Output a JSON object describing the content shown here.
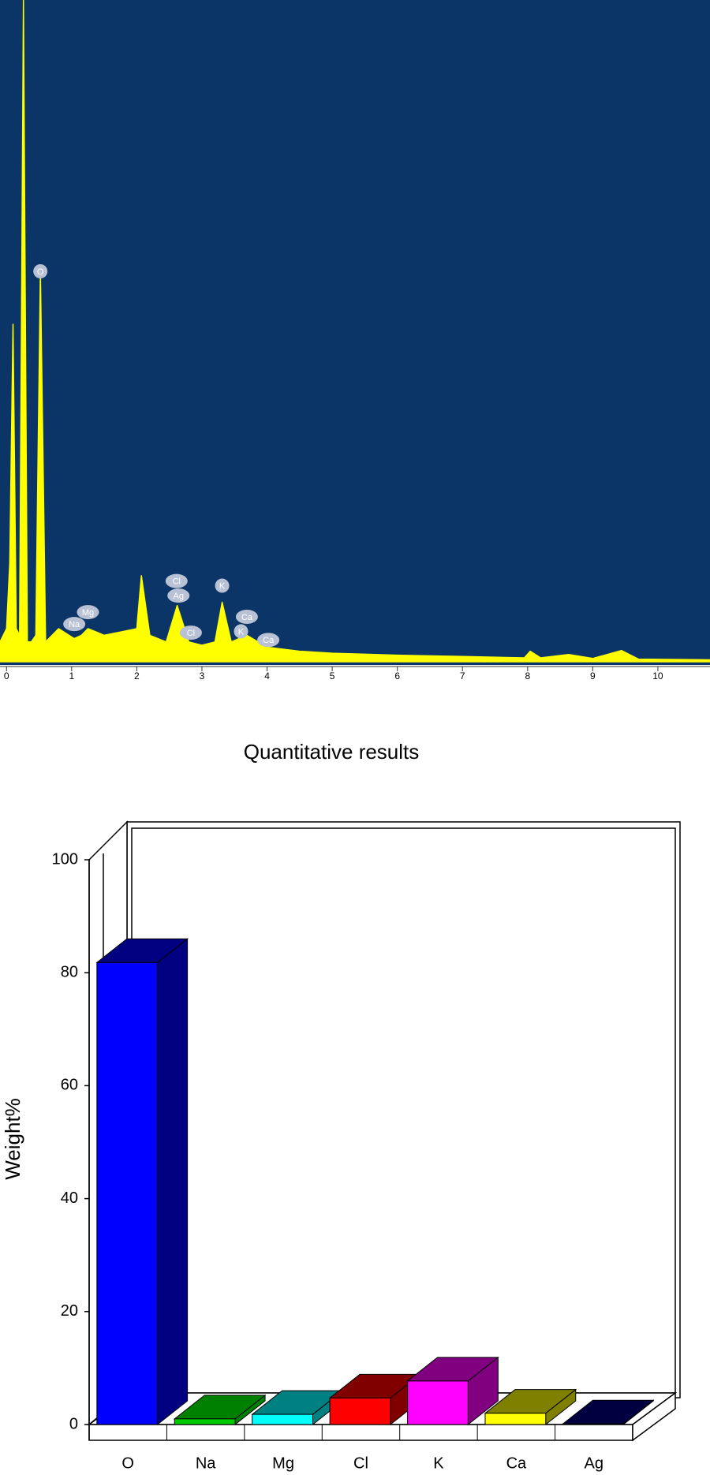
{
  "chart_data": [
    {
      "type": "area",
      "x": [
        -0.1,
        0,
        0.05,
        0.1,
        0.15,
        0.2,
        0.26,
        0.32,
        0.38,
        0.45,
        0.52,
        0.6,
        0.8,
        1.04,
        1.15,
        1.25,
        1.5,
        1.75,
        2.0,
        2.07,
        2.2,
        2.45,
        2.62,
        2.8,
        3.0,
        3.2,
        3.31,
        3.45,
        3.69,
        4.0,
        4.5,
        5,
        6,
        7,
        7.95,
        8.04,
        8.2,
        8.63,
        9.0,
        9.44,
        9.7,
        10.8
      ],
      "values": [
        3,
        5,
        15,
        51,
        5,
        4,
        100,
        3,
        3,
        4,
        59,
        3,
        5,
        3.5,
        4,
        5,
        4,
        4.5,
        5,
        13,
        4,
        3,
        8.5,
        3,
        2.5,
        3,
        9,
        3,
        4,
        2.2,
        1.6,
        1.3,
        1.0,
        0.8,
        0.6,
        1.6,
        0.6,
        1.1,
        0.5,
        1.7,
        0.4,
        0.3
      ],
      "color": "#ffff00",
      "background": "#0b3566",
      "xlim": [
        -0.1,
        10.8
      ],
      "ylim": [
        0,
        100
      ],
      "xticks": [
        0,
        1,
        2,
        3,
        4,
        5,
        6,
        7,
        8,
        9,
        10
      ],
      "annotations": [
        {
          "text": "O",
          "x": 0.52,
          "y": 59
        },
        {
          "text": "Na",
          "x": 1.04,
          "y": 5.7
        },
        {
          "text": "Mg",
          "x": 1.25,
          "y": 7.5
        },
        {
          "text": "Cl",
          "x": 2.61,
          "y": 12.2
        },
        {
          "text": "Ag",
          "x": 2.64,
          "y": 10
        },
        {
          "text": "Cl",
          "x": 2.83,
          "y": 4.4
        },
        {
          "text": "K",
          "x": 3.31,
          "y": 11.5
        },
        {
          "text": "K",
          "x": 3.6,
          "y": 4.6
        },
        {
          "text": "Ca",
          "x": 3.69,
          "y": 6.8
        },
        {
          "text": "Ca",
          "x": 4.02,
          "y": 3.3
        }
      ]
    },
    {
      "type": "bar",
      "title": "Quantitative results",
      "y_label": "Weight%",
      "categories": [
        "O",
        "Na",
        "Mg",
        "Cl",
        "K",
        "Ca",
        "Ag"
      ],
      "values": [
        81.8,
        1,
        1.8,
        4.7,
        7.7,
        2,
        0.1
      ],
      "colors": [
        "#0000ff",
        "#00cc00",
        "#00ffff",
        "#ff0000",
        "#ff00ff",
        "#ffff00",
        "#000060"
      ],
      "side_colors": [
        "#000080",
        "#008000",
        "#008080",
        "#800000",
        "#800080",
        "#808000",
        "#000040"
      ],
      "ylim": [
        0,
        100
      ],
      "yticks": [
        0,
        20,
        40,
        60,
        80,
        100
      ]
    }
  ]
}
